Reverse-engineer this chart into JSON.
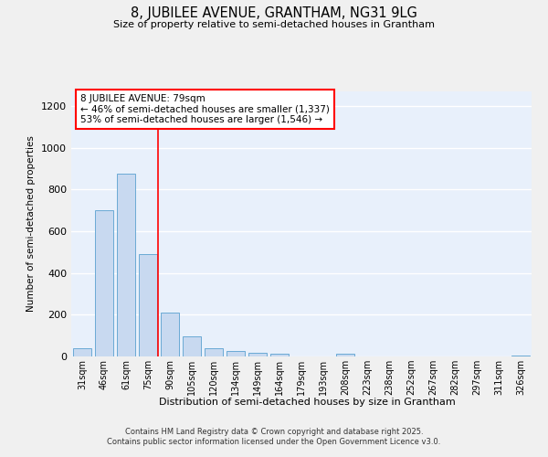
{
  "title_line1": "8, JUBILEE AVENUE, GRANTHAM, NG31 9LG",
  "title_line2": "Size of property relative to semi-detached houses in Grantham",
  "xlabel": "Distribution of semi-detached houses by size in Grantham",
  "ylabel": "Number of semi-detached properties",
  "categories": [
    "31sqm",
    "46sqm",
    "61sqm",
    "75sqm",
    "90sqm",
    "105sqm",
    "120sqm",
    "134sqm",
    "149sqm",
    "164sqm",
    "179sqm",
    "193sqm",
    "208sqm",
    "223sqm",
    "238sqm",
    "252sqm",
    "267sqm",
    "282sqm",
    "297sqm",
    "311sqm",
    "326sqm"
  ],
  "values": [
    40,
    700,
    875,
    490,
    210,
    95,
    40,
    25,
    17,
    12,
    0,
    0,
    15,
    0,
    0,
    0,
    0,
    0,
    0,
    0,
    5
  ],
  "bar_color": "#c8d9f0",
  "bar_edge_color": "#6aaad4",
  "red_line_x": 3.45,
  "ann_line1": "8 JUBILEE AVENUE: 79sqm",
  "ann_line2": "← 46% of semi-detached houses are smaller (1,337)",
  "ann_line3": "53% of semi-detached houses are larger (1,546) →",
  "ylim": [
    0,
    1270
  ],
  "yticks": [
    0,
    200,
    400,
    600,
    800,
    1000,
    1200
  ],
  "bg_color": "#e8f0fb",
  "fig_bg_color": "#f0f0f0",
  "grid_color": "#ffffff",
  "footer_line1": "Contains HM Land Registry data © Crown copyright and database right 2025.",
  "footer_line2": "Contains public sector information licensed under the Open Government Licence v3.0."
}
